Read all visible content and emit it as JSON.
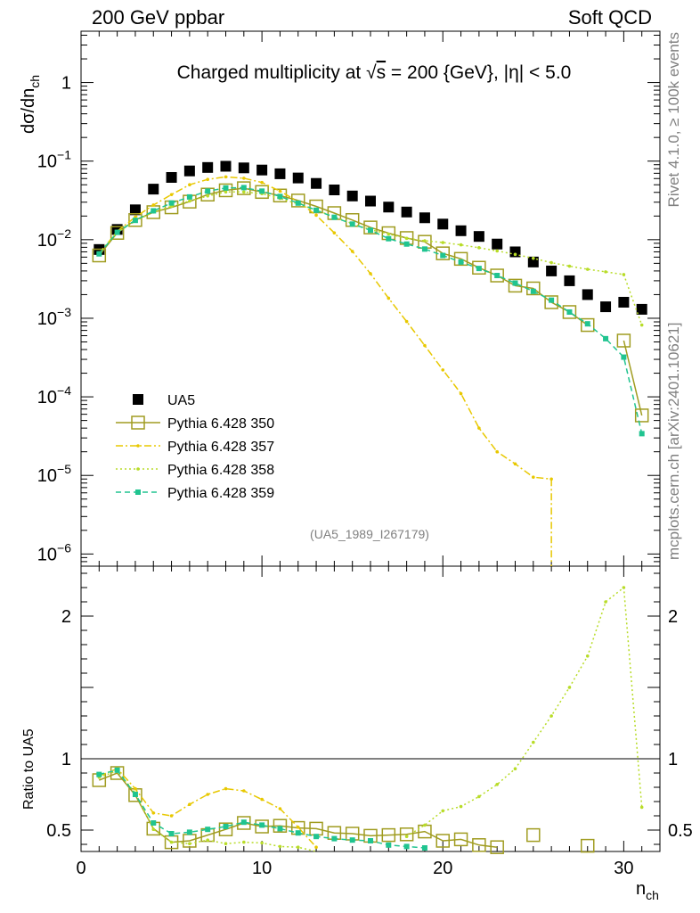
{
  "header": {
    "left": "200 GeV ppbar",
    "right": "Soft QCD"
  },
  "side_labels": {
    "rivet": "Rivet 4.1.0, ≥ 100k events",
    "mcplots": "mcplots.cern.ch [arXiv:2401.10621]"
  },
  "chart_data": {
    "type": "scatter",
    "title": "Charged multiplicity at √s = 200 {GeV}, |η| < 5.0",
    "title_parts": {
      "pre": "Charged multiplicity at ",
      "sqrt": "√",
      "s": "s",
      "post": " = 200 {GeV}, |η| < 5.0"
    },
    "analysis_id": "(UA5_1989_I267179)",
    "xlabel": "n",
    "xlabel_sub": "ch",
    "xlim": [
      0,
      32
    ],
    "x_ticks": [
      "0",
      "10",
      "20",
      "30"
    ],
    "main": {
      "ylabel": "dσ/dn",
      "ylabel_sub": "ch",
      "yscale": "log",
      "ylim": [
        7e-07,
        4.5
      ],
      "y_ticks": [
        {
          "v": 1e-06,
          "m": "10",
          "e": "−6"
        },
        {
          "v": 1e-05,
          "m": "10",
          "e": "−5"
        },
        {
          "v": 0.0001,
          "m": "10",
          "e": "−4"
        },
        {
          "v": 0.001,
          "m": "10",
          "e": "−3"
        },
        {
          "v": 0.01,
          "m": "10",
          "e": "−2"
        },
        {
          "v": 0.1,
          "m": "10",
          "e": "−1"
        },
        {
          "v": 1,
          "m": "1",
          "e": ""
        }
      ]
    },
    "ratio": {
      "ylabel": "Ratio to UA5",
      "ylim": [
        0.35,
        2.35
      ],
      "y_ticks": [
        "0.5",
        "1",
        "2"
      ]
    },
    "x": [
      1,
      2,
      3,
      4,
      5,
      6,
      7,
      8,
      9,
      10,
      11,
      12,
      13,
      14,
      15,
      16,
      17,
      18,
      19,
      20,
      21,
      22,
      23,
      24,
      25,
      26,
      27,
      28,
      29,
      30,
      31
    ],
    "series": [
      {
        "name": "UA5",
        "color": "#000000",
        "marker": "square",
        "values": [
          0.0075,
          0.0135,
          0.024,
          0.044,
          0.062,
          0.075,
          0.083,
          0.086,
          0.082,
          0.077,
          0.069,
          0.061,
          0.052,
          0.043,
          0.036,
          0.031,
          0.026,
          0.0225,
          0.019,
          0.0158,
          0.013,
          0.011,
          0.0088,
          0.007,
          0.0052,
          0.004,
          0.003,
          0.002,
          0.0014,
          0.0016,
          0.0013
        ]
      },
      {
        "name": "Pythia 6.428 350",
        "color": "#a09c20",
        "marker": "open-square",
        "line": "solid",
        "values": [
          0.0063,
          0.0122,
          0.0178,
          0.0224,
          0.0258,
          0.0305,
          0.0375,
          0.0425,
          0.0452,
          0.0405,
          0.0365,
          0.0315,
          0.0265,
          0.0218,
          0.0178,
          0.0143,
          0.0121,
          0.0105,
          0.0094,
          0.0067,
          0.0057,
          0.0044,
          0.0035,
          0.0026,
          0.0024,
          0.0016,
          0.0012,
          0.00082,
          null,
          0.00052,
          5.8e-05
        ],
        "ratio": [
          0.85,
          0.9,
          0.745,
          0.51,
          0.415,
          0.425,
          0.465,
          0.505,
          0.55,
          0.525,
          0.53,
          0.515,
          0.51,
          0.48,
          0.475,
          0.46,
          0.465,
          0.47,
          0.49,
          0.425,
          0.435,
          0.395,
          0.38,
          null,
          0.465,
          null,
          null,
          0.39,
          null,
          null,
          null
        ]
      },
      {
        "name": "Pythia 6.428 357",
        "color": "#e8c800",
        "marker": "small-dot",
        "line": "dashdot",
        "values": [
          0.0066,
          0.0128,
          0.0194,
          0.0276,
          0.0375,
          0.05,
          0.0585,
          0.063,
          0.0605,
          0.0535,
          0.0415,
          0.0305,
          0.0205,
          0.0122,
          0.0071,
          0.0037,
          0.0018,
          0.00091,
          0.00045,
          0.00022,
          0.00011,
          4e-05,
          2e-05,
          1.4e-05,
          9.5e-06,
          9e-06,
          null,
          null,
          null,
          null,
          null
        ],
        "ratio": [
          0.88,
          0.93,
          0.79,
          0.62,
          0.6,
          0.68,
          0.75,
          0.79,
          0.775,
          0.715,
          0.65,
          0.52,
          0.38,
          null,
          null,
          null,
          null,
          null,
          null,
          null,
          null,
          null,
          null,
          null,
          null,
          null,
          null,
          null,
          null,
          null,
          null
        ]
      },
      {
        "name": "Pythia 6.428 358",
        "color": "#b8dc28",
        "marker": "small-dot",
        "line": "dotted",
        "values": [
          0.0068,
          0.0124,
          0.0172,
          0.0225,
          0.0266,
          0.031,
          0.036,
          0.0405,
          0.0405,
          0.0385,
          0.0335,
          0.0285,
          0.0238,
          0.0195,
          0.016,
          0.0134,
          0.0118,
          0.0104,
          0.0097,
          0.0092,
          0.0086,
          0.0079,
          0.0072,
          0.0065,
          0.0058,
          0.0051,
          0.0046,
          0.0042,
          0.0039,
          0.0036,
          0.00082
        ],
        "ratio": [
          0.87,
          0.915,
          0.76,
          0.505,
          0.415,
          0.405,
          0.43,
          0.405,
          0.415,
          0.41,
          0.385,
          0.38,
          0.34,
          null,
          null,
          null,
          null,
          0.455,
          0.535,
          0.635,
          0.665,
          0.735,
          0.82,
          0.93,
          1.115,
          1.3,
          1.5,
          1.72,
          2.1,
          2.2,
          0.66
        ]
      },
      {
        "name": "Pythia 6.428 359",
        "color": "#20c490",
        "marker": "filled-square-small",
        "line": "dashed",
        "values": [
          0.0066,
          0.0124,
          0.0176,
          0.0233,
          0.0293,
          0.035,
          0.0415,
          0.0455,
          0.046,
          0.0415,
          0.0355,
          0.0292,
          0.0237,
          0.0193,
          0.0158,
          0.0132,
          0.0103,
          0.0088,
          0.0076,
          0.0063,
          0.0052,
          0.0043,
          0.0035,
          0.0028,
          0.0022,
          0.0017,
          0.0012,
          0.00085,
          0.00055,
          0.00032,
          3.4e-05
        ],
        "ratio": [
          0.89,
          0.92,
          0.75,
          0.55,
          0.475,
          0.485,
          0.505,
          0.525,
          0.555,
          0.535,
          0.51,
          0.48,
          0.455,
          0.44,
          0.43,
          0.425,
          0.395,
          0.385,
          0.375,
          null,
          null,
          null,
          null,
          null,
          null,
          null,
          null,
          null,
          null,
          null,
          null
        ]
      }
    ]
  }
}
